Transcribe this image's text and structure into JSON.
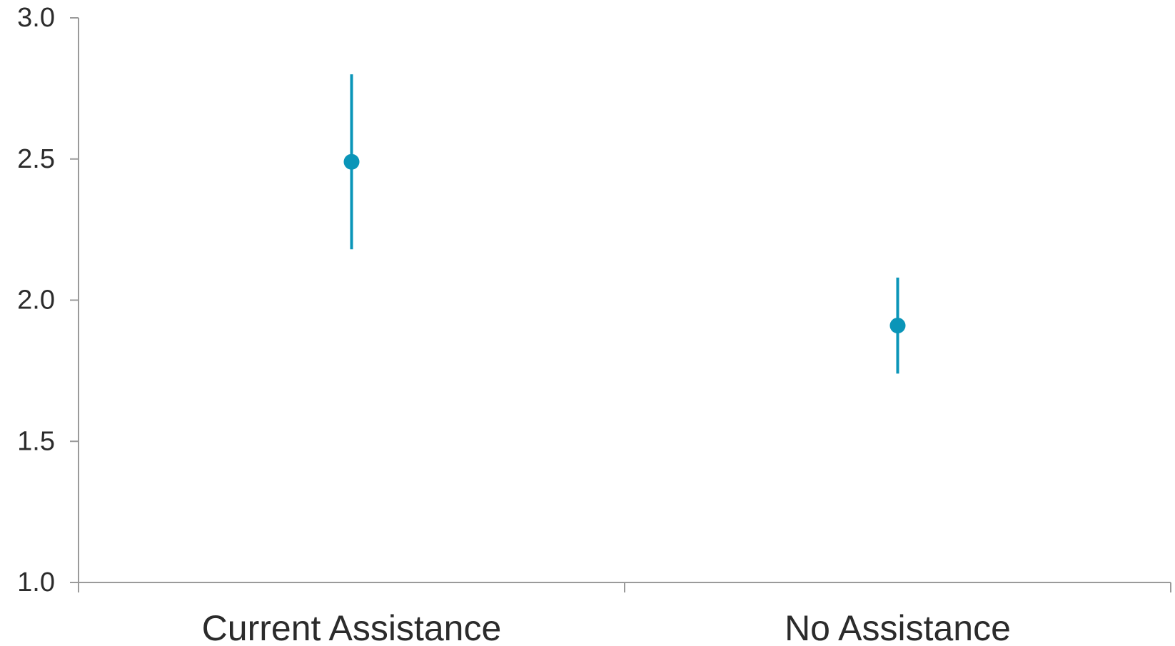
{
  "chart_data": {
    "type": "scatter",
    "title": "",
    "xlabel": "",
    "ylabel": "",
    "categories": [
      "Current Assistance",
      "No Assistance"
    ],
    "series": [
      {
        "points": [
          {
            "category": "Current Assistance",
            "value": 2.49,
            "lower": 2.18,
            "upper": 2.8
          },
          {
            "category": "No Assistance",
            "value": 1.91,
            "lower": 1.74,
            "upper": 2.08
          }
        ]
      }
    ],
    "ylim": [
      1.0,
      3.0
    ],
    "yticks": [
      {
        "value": 1.0,
        "label": "1.0"
      },
      {
        "value": 1.5,
        "label": "1.5"
      },
      {
        "value": 2.0,
        "label": "2.0"
      },
      {
        "value": 2.5,
        "label": "2.5"
      },
      {
        "value": 3.0,
        "label": "3.0"
      }
    ],
    "grid": false,
    "legend": "none",
    "colors": {
      "marker": "#0a95b8",
      "axis": "#9a9a9a",
      "text": "#2b2b2b"
    }
  }
}
